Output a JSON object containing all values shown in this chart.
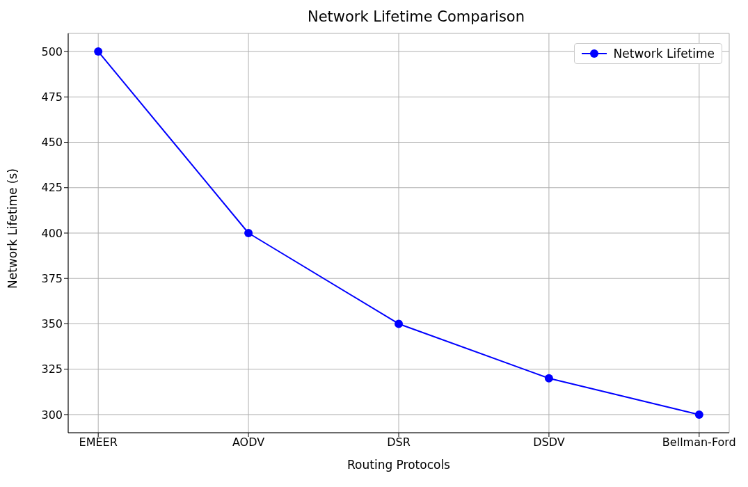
{
  "chart_data": {
    "type": "line",
    "title": "Network Lifetime Comparison",
    "xlabel": "Routing Protocols",
    "ylabel": "Network Lifetime (s)",
    "categories": [
      "EMEER",
      "AODV",
      "DSR",
      "DSDV",
      "Bellman-Ford"
    ],
    "series": [
      {
        "name": "Network Lifetime",
        "color": "#0000ff",
        "values": [
          500,
          400,
          350,
          320,
          300
        ]
      }
    ],
    "ylim": [
      290,
      510
    ],
    "yticks": [
      300,
      325,
      350,
      375,
      400,
      425,
      450,
      475,
      500
    ],
    "grid": true,
    "legend": "top right",
    "marker": "circle",
    "line_style": "solid"
  }
}
